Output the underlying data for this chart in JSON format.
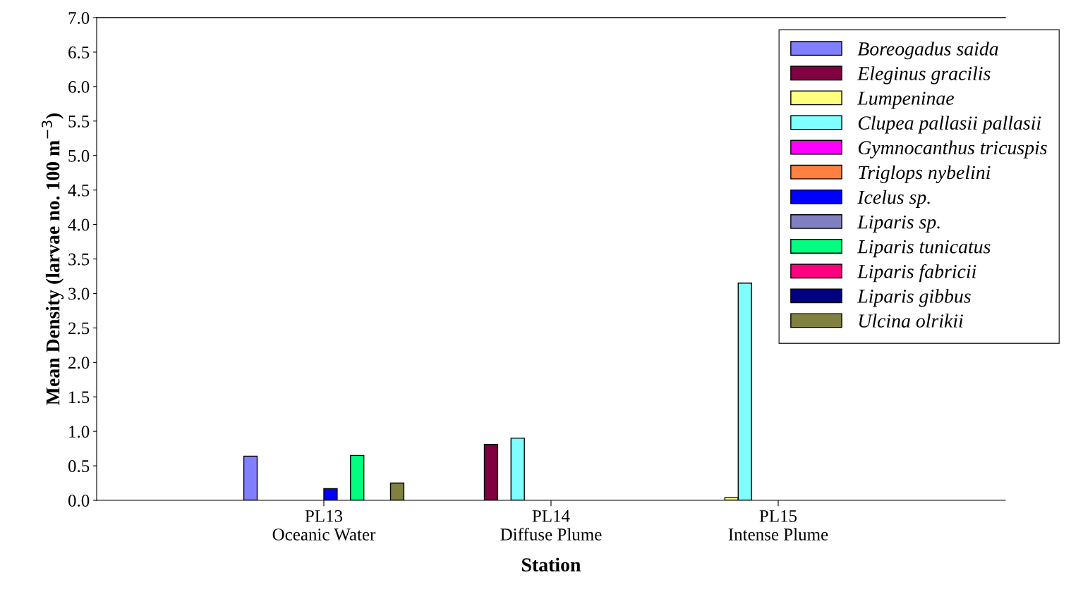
{
  "chart_data": {
    "type": "bar",
    "xlabel": "Station",
    "ylabel": "Mean Density (larvae no. 100 m$^{−3}$)",
    "categories": [
      "PL13\nOceanic Water",
      "PL14\nDiffuse Plume",
      "PL15\nIntense Plume"
    ],
    "series": [
      {
        "name": "Boreogadus saida",
        "color": "#8080ff",
        "values": [
          0.64,
          0,
          0
        ]
      },
      {
        "name": "Eleginus gracilis",
        "color": "#800040",
        "values": [
          0,
          0.81,
          0
        ]
      },
      {
        "name": "Lumpeninae",
        "color": "#ffff80",
        "values": [
          0,
          0,
          0.04
        ]
      },
      {
        "name": "Clupea pallasii pallasii",
        "color": "#80ffff",
        "values": [
          0,
          0.9,
          3.15
        ]
      },
      {
        "name": "Gymnocanthus tricuspis",
        "color": "#ff00ff",
        "values": [
          0,
          0,
          0
        ]
      },
      {
        "name": "Triglops nybelini",
        "color": "#ff8040",
        "values": [
          0,
          0,
          0
        ]
      },
      {
        "name": "Icelus sp.",
        "color": "#0000ff",
        "values": [
          0.17,
          0,
          0
        ]
      },
      {
        "name": "Liparis sp.",
        "color": "#8080c0",
        "values": [
          0,
          0,
          0
        ]
      },
      {
        "name": "Liparis tunicatus",
        "color": "#00ff80",
        "values": [
          0.65,
          0,
          0
        ]
      },
      {
        "name": "Liparis fabricii",
        "color": "#ff0080",
        "values": [
          0,
          0,
          0
        ]
      },
      {
        "name": "Liparis gibbus",
        "color": "#000080",
        "values": [
          0,
          0,
          0
        ]
      },
      {
        "name": "Ulcina olrikii",
        "color": "#808040",
        "values": [
          0.25,
          0,
          0
        ]
      }
    ],
    "ylim": [
      0,
      7
    ],
    "yticks": [
      {
        "value": 0,
        "label": "0.0"
      },
      0.5,
      {
        "value": 1,
        "label": "1.0"
      },
      1.5,
      {
        "value": 2,
        "label": "2.0"
      },
      2.5,
      {
        "value": 3,
        "label": "3.0"
      },
      3.5,
      {
        "value": 4,
        "label": "4.0"
      },
      4.5,
      {
        "value": 5,
        "label": "5.0"
      },
      5.5,
      {
        "value": 6,
        "label": "6.0"
      },
      6.5,
      {
        "value": 7,
        "label": "7.0"
      }
    ],
    "grid": false,
    "legend": "top right"
  }
}
